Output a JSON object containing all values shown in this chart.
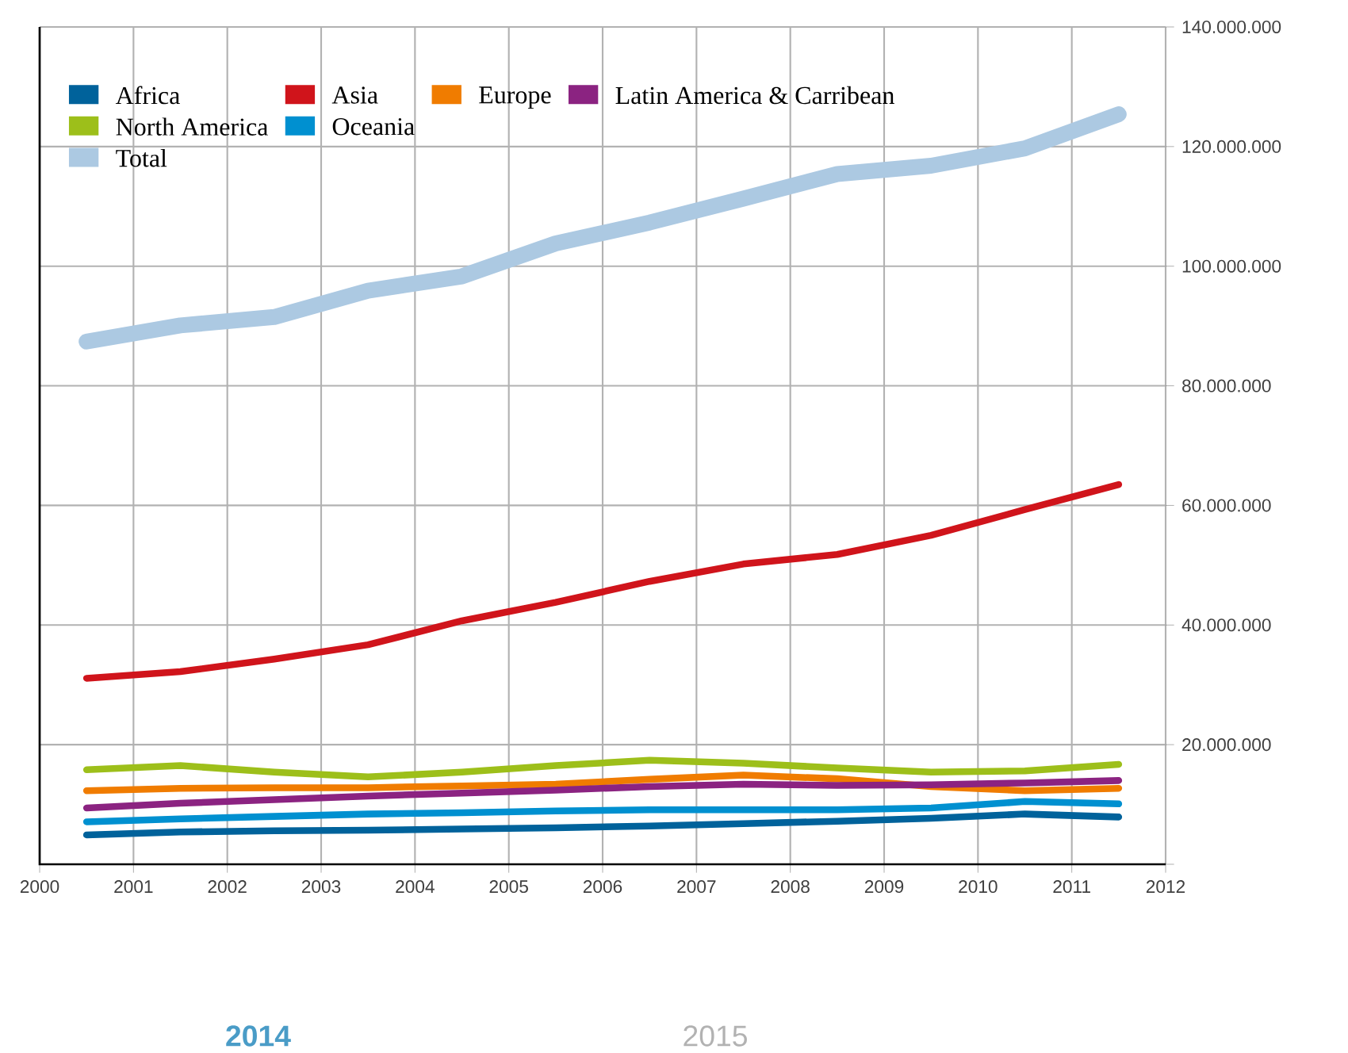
{
  "chart_data": {
    "type": "line",
    "x": [
      2000.5,
      2001.5,
      2002.5,
      2003.5,
      2004.5,
      2005.5,
      2006.5,
      2007.5,
      2008.5,
      2009.5,
      2010.5,
      2011.5
    ],
    "series": [
      {
        "name": "Africa",
        "color": "#00629b",
        "values": [
          4900000,
          5400000,
          5600000,
          5700000,
          5900000,
          6100000,
          6400000,
          6800000,
          7200000,
          7700000,
          8400000,
          7900000
        ]
      },
      {
        "name": "Asia",
        "color": "#d0141b",
        "values": [
          31100000,
          32200000,
          34300000,
          36700000,
          40700000,
          43800000,
          47300000,
          50200000,
          51800000,
          55000000,
          59300000,
          63500000
        ]
      },
      {
        "name": "Europe",
        "color": "#f07c00",
        "values": [
          12300000,
          12700000,
          12800000,
          12800000,
          13100000,
          13400000,
          14200000,
          14900000,
          14300000,
          13000000,
          12300000,
          12700000
        ]
      },
      {
        "name": "Latin America & Carribean",
        "color": "#8b2381",
        "values": [
          9400000,
          10200000,
          10800000,
          11400000,
          11900000,
          12400000,
          13000000,
          13400000,
          13200000,
          13300000,
          13600000,
          14000000
        ]
      },
      {
        "name": "North America",
        "color": "#9dbf1a",
        "values": [
          15800000,
          16500000,
          15400000,
          14600000,
          15400000,
          16500000,
          17400000,
          16900000,
          16100000,
          15400000,
          15600000,
          16700000
        ]
      },
      {
        "name": "Oceania",
        "color": "#0090d0",
        "values": [
          7100000,
          7600000,
          8000000,
          8400000,
          8600000,
          8900000,
          9100000,
          9100000,
          9100000,
          9400000,
          10500000,
          10100000
        ]
      },
      {
        "name": "Total",
        "color": "#acc9e2",
        "values": [
          87400000,
          90100000,
          91500000,
          95900000,
          98300000,
          103800000,
          107300000,
          111300000,
          115400000,
          116800000,
          119700000,
          125400000
        ]
      }
    ],
    "xlim": [
      2000,
      2012
    ],
    "xticks": [
      2000,
      2001,
      2002,
      2003,
      2004,
      2005,
      2006,
      2007,
      2008,
      2009,
      2010,
      2011,
      2012
    ],
    "ylim": [
      0,
      140000000
    ],
    "yticks": [
      {
        "value": 0,
        "label": null
      },
      {
        "value": 20000000,
        "label": "20.000.000"
      },
      {
        "value": 40000000,
        "label": "40.000.000"
      },
      {
        "value": 60000000,
        "label": "60.000.000"
      },
      {
        "value": 80000000,
        "label": "80.000.000"
      },
      {
        "value": 100000000,
        "label": "100.000.000"
      },
      {
        "value": 120000000,
        "label": "120.000.000"
      },
      {
        "value": 140000000,
        "label": "140.000.000"
      }
    ],
    "grid": true,
    "legend": "top left",
    "marker": "none",
    "line_style": "solid",
    "annotations": [
      "2014",
      "2015"
    ]
  }
}
